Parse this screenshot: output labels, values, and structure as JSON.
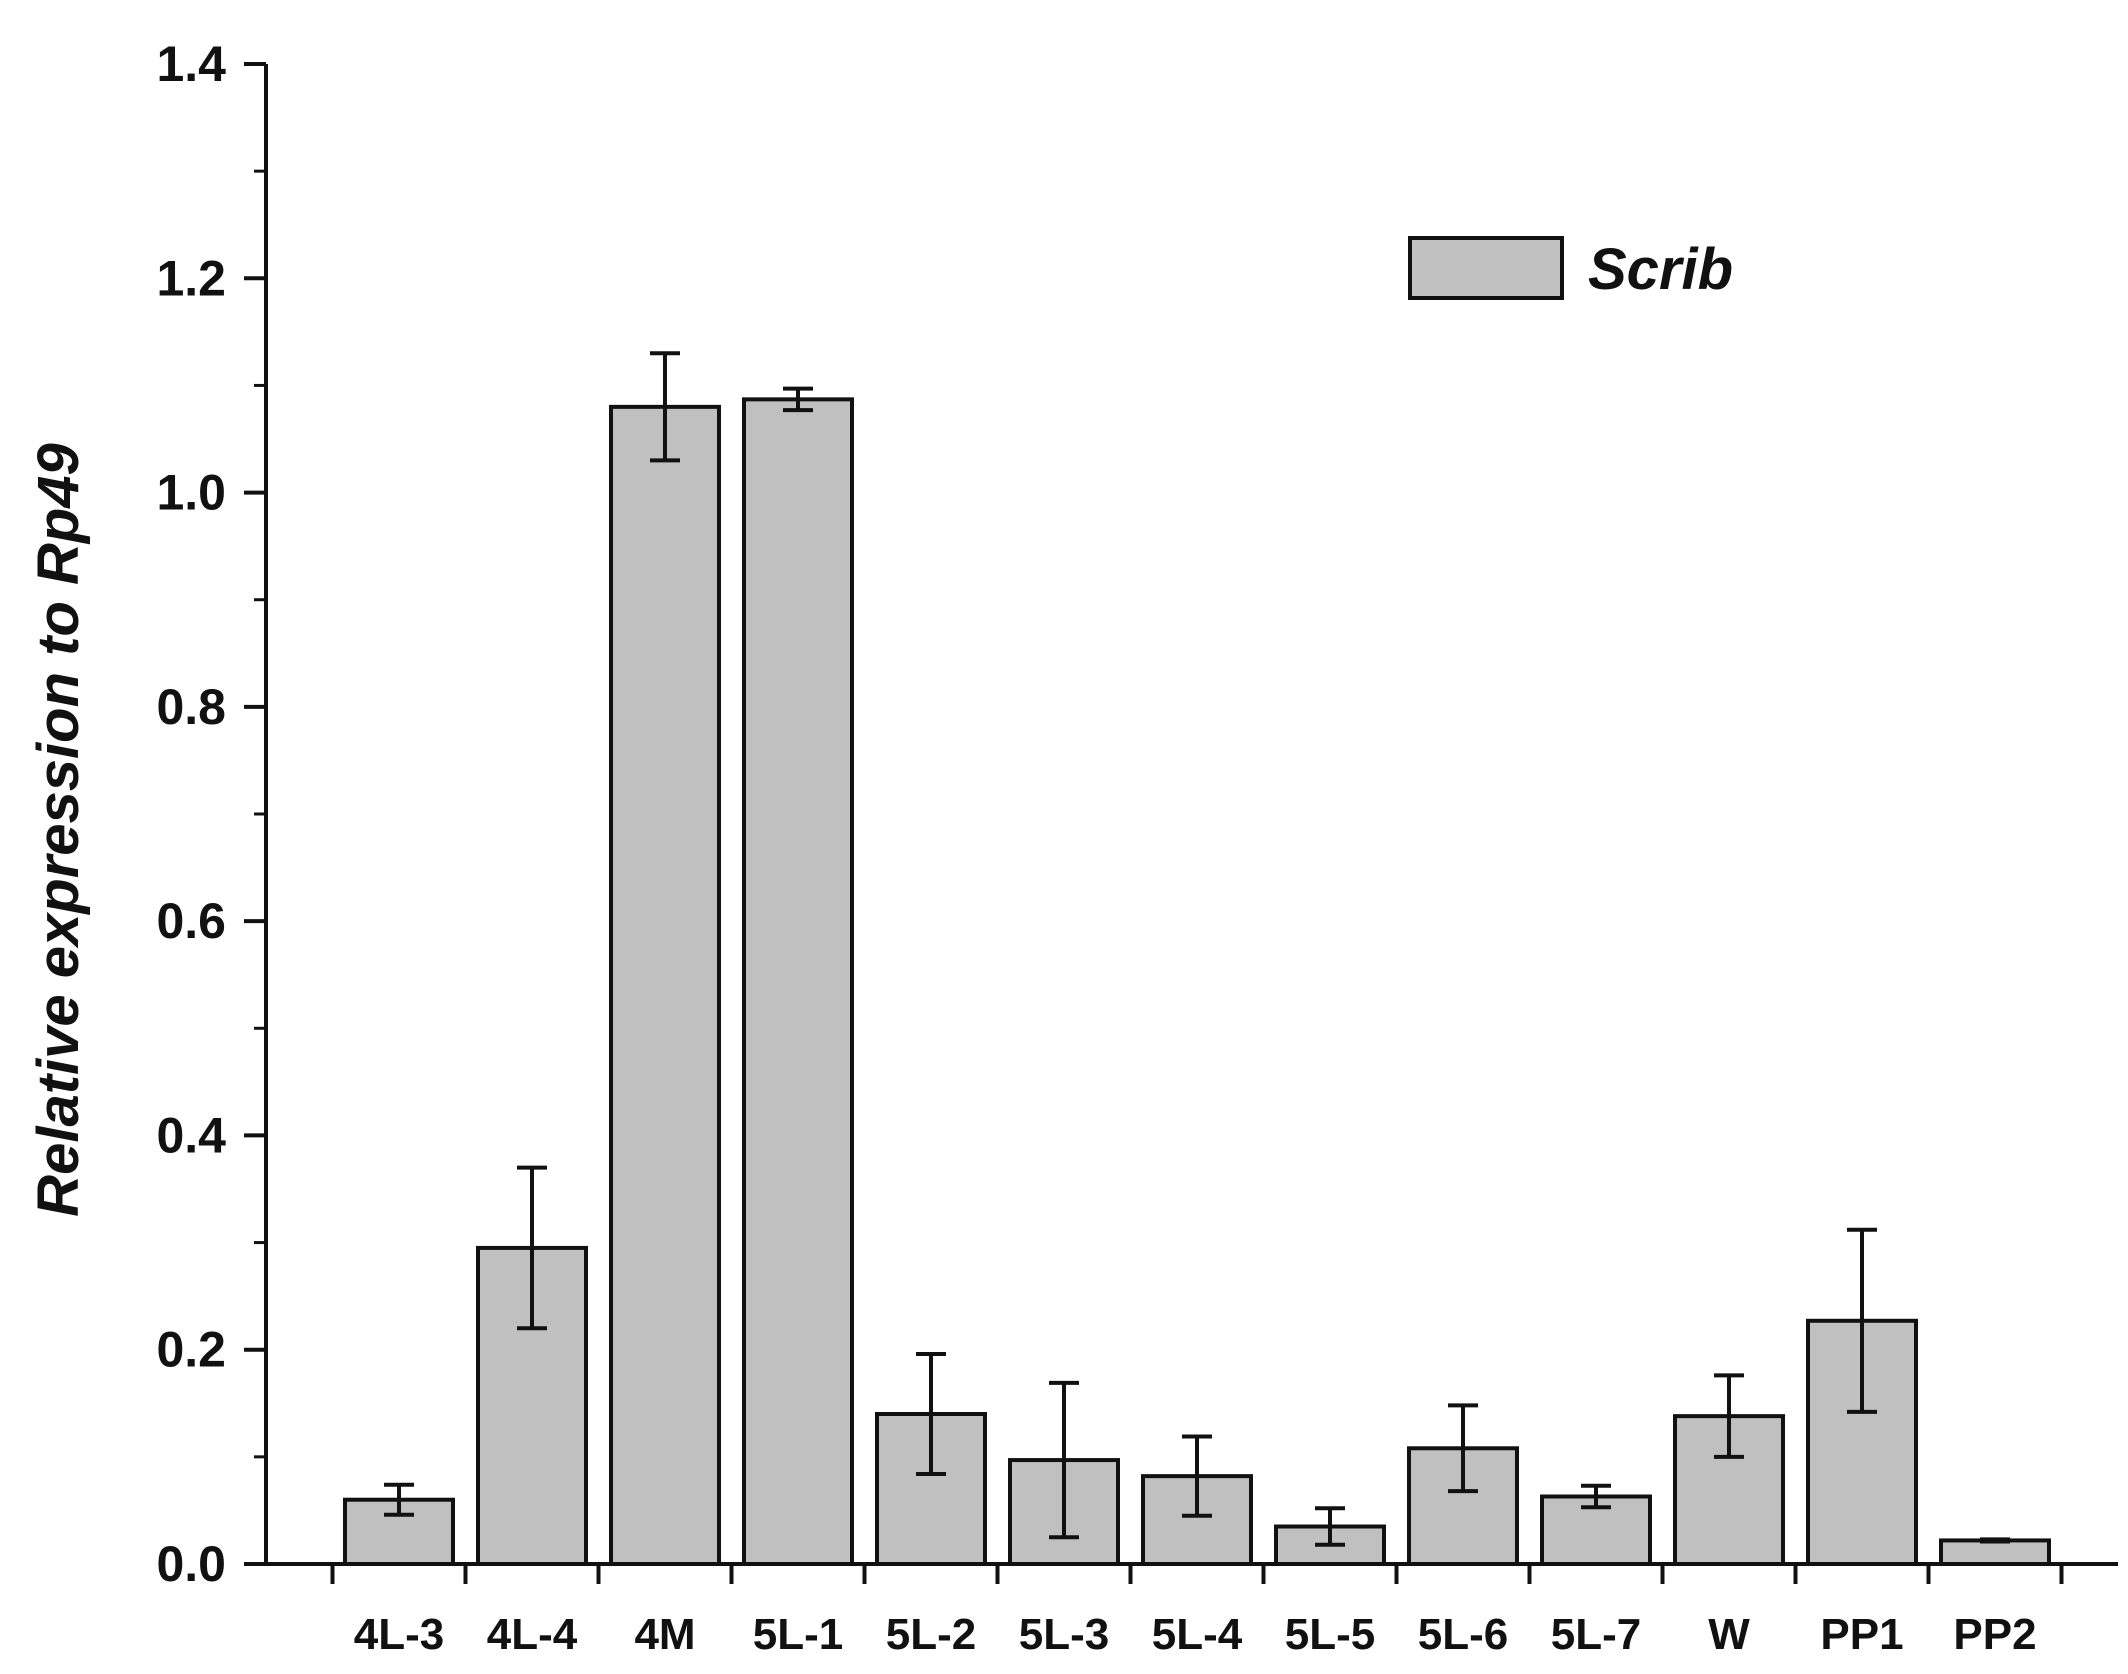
{
  "chart_data": {
    "type": "bar",
    "title": "",
    "xlabel": "",
    "ylabel": "Relative expression to Rp49",
    "ylim": [
      0,
      1.4
    ],
    "yticks": [
      "0.0",
      "0.2",
      "0.4",
      "0.6",
      "0.8",
      "1.0",
      "1.2",
      "1.4"
    ],
    "categories": [
      "4L-3",
      "4L-4",
      "4M",
      "5L-1",
      "5L-2",
      "5L-3",
      "5L-4",
      "5L-5",
      "5L-6",
      "5L-7",
      "W",
      "PP1",
      "PP2"
    ],
    "series": [
      {
        "name": "Scrib",
        "values": [
          0.06,
          0.295,
          1.08,
          1.087,
          0.14,
          0.097,
          0.082,
          0.035,
          0.108,
          0.063,
          0.138,
          0.227,
          0.022
        ],
        "errors": [
          0.014,
          0.075,
          0.05,
          0.01,
          0.056,
          0.072,
          0.037,
          0.017,
          0.04,
          0.01,
          0.038,
          0.085,
          0.001
        ]
      }
    ],
    "legend": {
      "position": "top-right",
      "label": "Scrib"
    },
    "grid": false,
    "colors": {
      "bar_fill": "#c0c0c0",
      "bar_stroke": "#111111",
      "axis": "#111111"
    }
  }
}
